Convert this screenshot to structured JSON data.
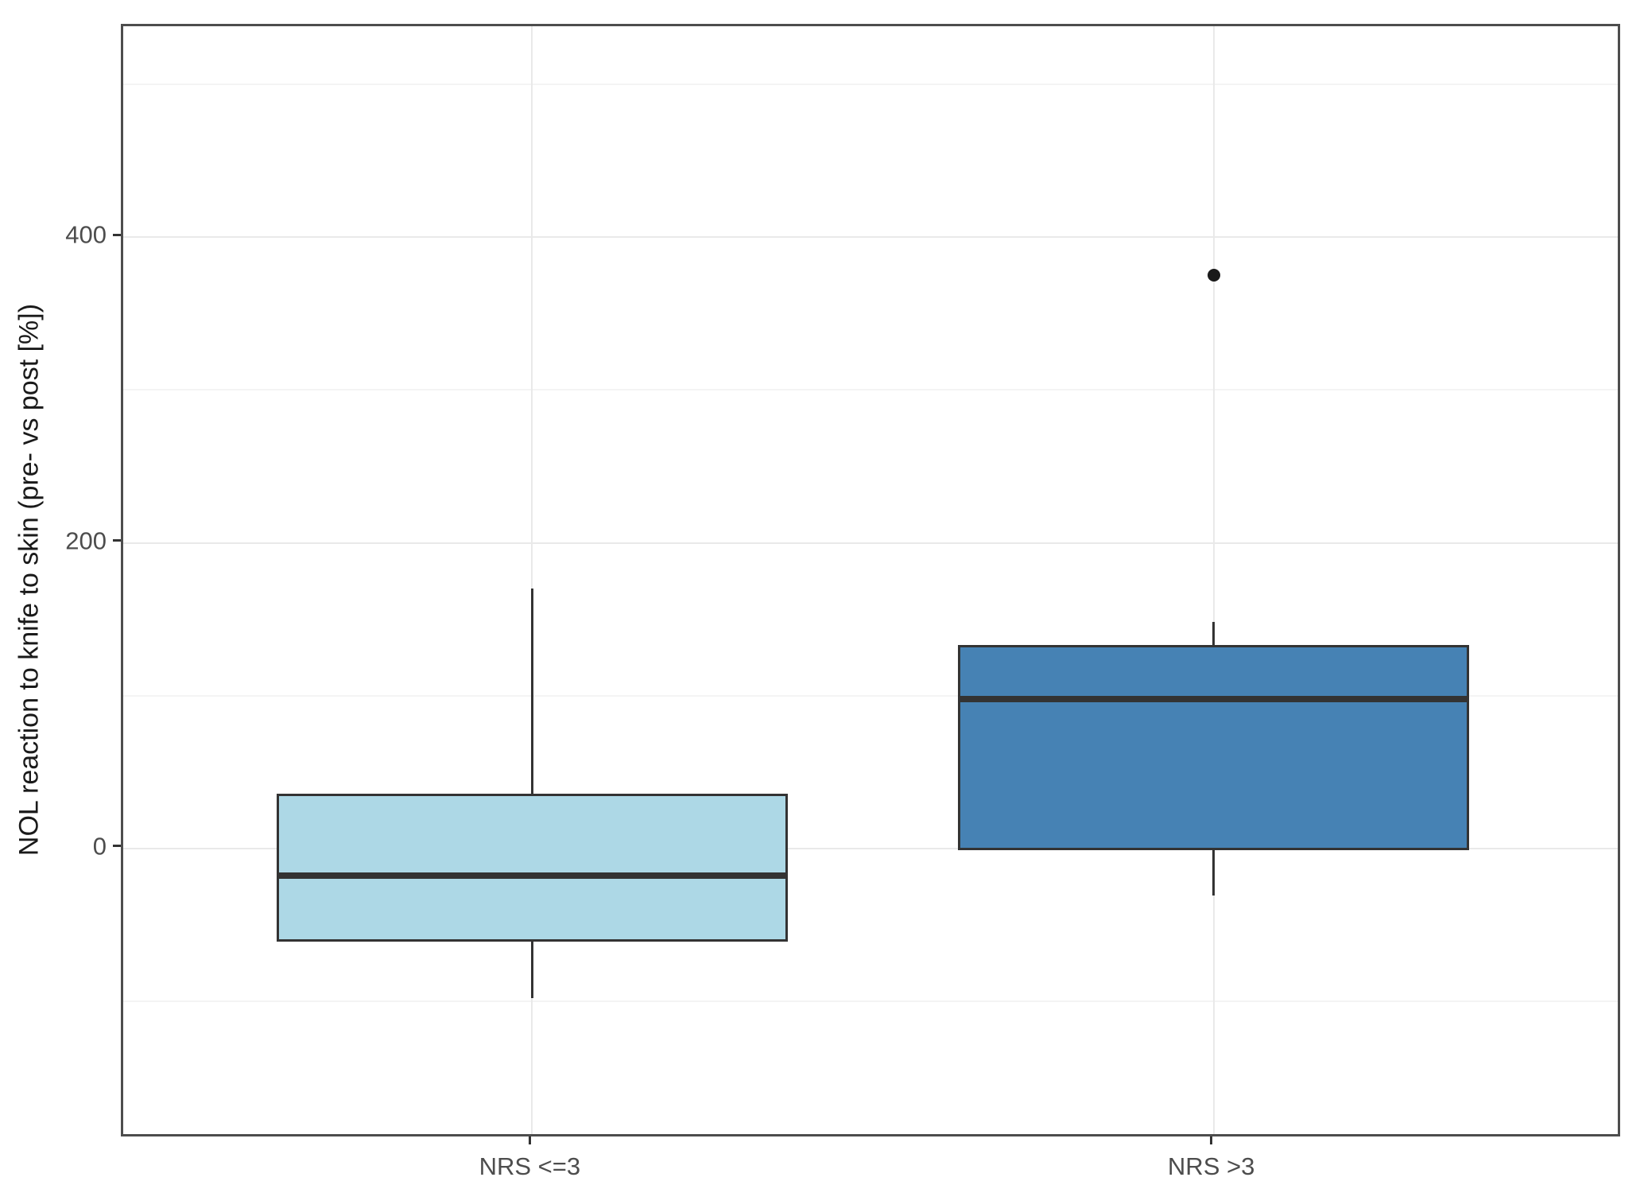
{
  "chart_data": {
    "type": "boxplot",
    "title": "",
    "xlabel": "",
    "ylabel": "NOL reaction to knife to skin (pre- vs post [%])",
    "ylim": [
      -190,
      538
    ],
    "yticks": [
      0,
      200,
      400
    ],
    "yticks_minor": [
      -100,
      100,
      300,
      500
    ],
    "categories": [
      "NRS <=3",
      "NRS >3"
    ],
    "series": [
      {
        "label": "NRS <=3",
        "fill": "#ADD8E6",
        "whisker_low": -98,
        "q1": -61,
        "median": -18,
        "q3": 36,
        "whisker_high": 170,
        "outliers": []
      },
      {
        "label": "NRS >3",
        "fill": "#4682B4",
        "whisker_low": -31,
        "q1": -1,
        "median": 98,
        "q3": 133,
        "whisker_high": 148,
        "outliers": [
          375
        ]
      }
    ],
    "grid": true,
    "legend": false,
    "colors": {
      "box_stroke": "#333333",
      "median_stroke": "#333333",
      "whisker_stroke": "#333333",
      "outlier": "#1a1a1a",
      "tick_label": "#4d4d4d",
      "axis_title": "#1a1a1a",
      "panel_border": "#4d4d4d",
      "grid_major": "#e9e9e9",
      "grid_minor": "#f4f4f4",
      "background": "#ffffff"
    }
  }
}
